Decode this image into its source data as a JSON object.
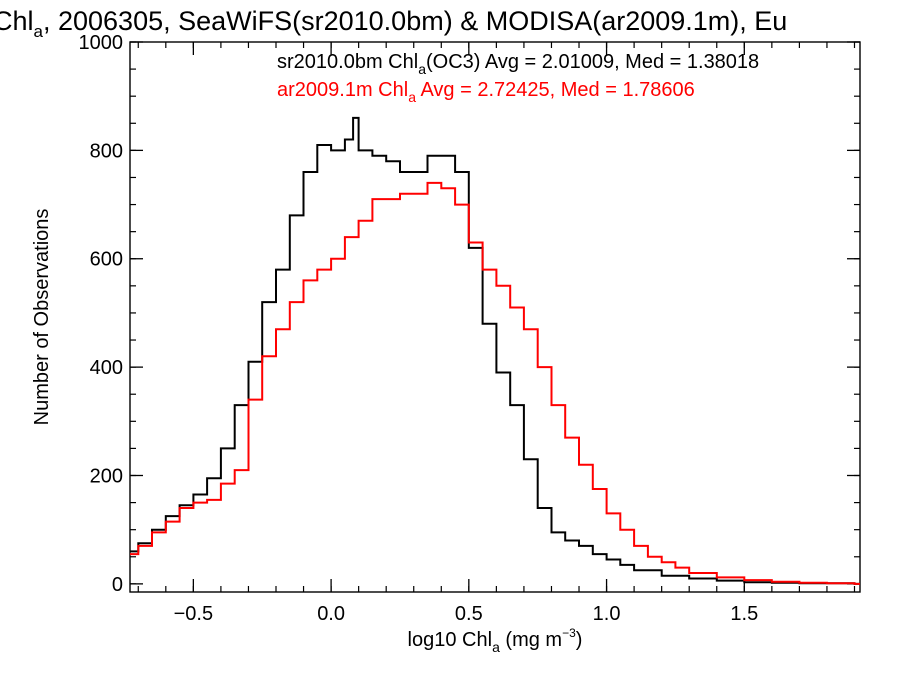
{
  "chart_data": {
    "type": "line",
    "title": {
      "prefix": "Chl",
      "prefix_sub": "a",
      "rest": ", 2006305, SeaWiFS(sr2010.0bm) & MODISA(ar2009.1m), Eu"
    },
    "xlabel": {
      "main": "log10 Chl",
      "sub": "a",
      "unit": " (mg m",
      "sup": "−3",
      "close": ")"
    },
    "ylabel": "Number of Observations",
    "xlim": [
      -0.73,
      1.92
    ],
    "ylim": [
      -15,
      1000
    ],
    "x_ticks": [
      -0.5,
      0.0,
      0.5,
      1.0,
      1.5
    ],
    "x_tick_labels": [
      "−0.5",
      "0.0",
      "0.5",
      "1.0",
      "1.5"
    ],
    "y_ticks": [
      0,
      200,
      400,
      600,
      800,
      1000
    ],
    "y_tick_labels": [
      "0",
      "200",
      "400",
      "600",
      "800",
      "1000"
    ],
    "x_minor_step": 0.1,
    "y_minor_step": 50,
    "grid": false,
    "legend_position": "top-right",
    "series": [
      {
        "name": "sr2010.0bm",
        "color": "#000000",
        "legend": {
          "pre": "sr2010.0bm Chl",
          "sub": "a",
          "post": "(OC3) Avg = 2.01009, Med = 1.38018"
        },
        "x": [
          -0.73,
          -0.7,
          -0.65,
          -0.6,
          -0.55,
          -0.5,
          -0.45,
          -0.4,
          -0.35,
          -0.3,
          -0.25,
          -0.2,
          -0.15,
          -0.1,
          -0.05,
          0.0,
          0.05,
          0.08,
          0.1,
          0.15,
          0.2,
          0.25,
          0.3,
          0.35,
          0.4,
          0.45,
          0.5,
          0.55,
          0.6,
          0.65,
          0.7,
          0.75,
          0.8,
          0.85,
          0.9,
          0.95,
          1.0,
          1.05,
          1.1,
          1.2,
          1.3,
          1.4,
          1.5,
          1.6,
          1.7,
          1.8,
          1.9
        ],
        "y": [
          60,
          75,
          100,
          125,
          145,
          165,
          195,
          250,
          330,
          410,
          520,
          580,
          680,
          760,
          810,
          800,
          820,
          860,
          800,
          790,
          780,
          760,
          760,
          790,
          790,
          760,
          620,
          480,
          390,
          330,
          230,
          140,
          95,
          80,
          70,
          55,
          45,
          35,
          25,
          15,
          10,
          6,
          3,
          2,
          1,
          1,
          0
        ]
      },
      {
        "name": "ar2009.1m",
        "color": "#ff0000",
        "legend": {
          "pre": "ar2009.1m Chl",
          "sub": "a",
          "post": " Avg = 2.72425, Med = 1.78606"
        },
        "x": [
          -0.73,
          -0.7,
          -0.65,
          -0.6,
          -0.55,
          -0.5,
          -0.45,
          -0.4,
          -0.35,
          -0.3,
          -0.25,
          -0.2,
          -0.15,
          -0.1,
          -0.05,
          0.0,
          0.05,
          0.1,
          0.15,
          0.2,
          0.25,
          0.3,
          0.35,
          0.4,
          0.45,
          0.5,
          0.55,
          0.6,
          0.65,
          0.7,
          0.75,
          0.8,
          0.85,
          0.9,
          0.95,
          1.0,
          1.05,
          1.1,
          1.15,
          1.2,
          1.25,
          1.3,
          1.4,
          1.5,
          1.6,
          1.7,
          1.8,
          1.9
        ],
        "y": [
          55,
          70,
          95,
          115,
          140,
          150,
          155,
          185,
          210,
          340,
          420,
          470,
          520,
          560,
          580,
          600,
          640,
          670,
          710,
          710,
          720,
          720,
          740,
          730,
          700,
          630,
          580,
          550,
          510,
          470,
          400,
          330,
          270,
          220,
          175,
          130,
          100,
          70,
          50,
          40,
          30,
          20,
          12,
          7,
          4,
          2,
          1,
          0
        ]
      }
    ]
  }
}
